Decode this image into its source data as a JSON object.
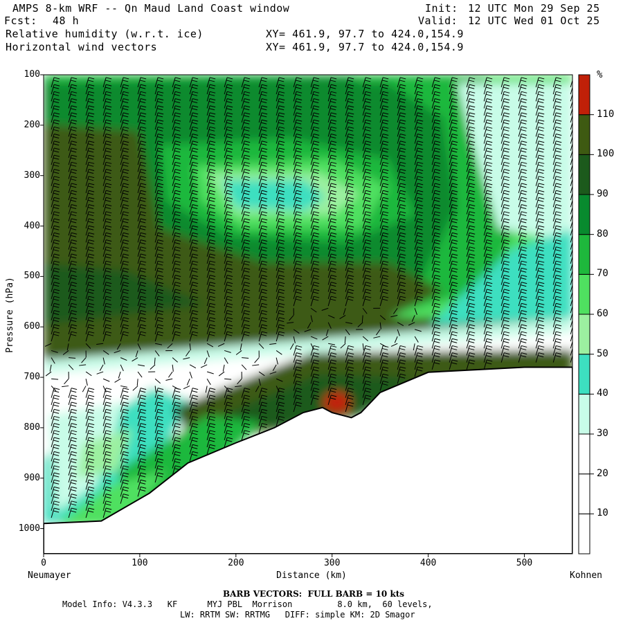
{
  "header": {
    "title": "AMPS 8-km WRF -- Qn Maud Land Coast window",
    "init_label": "Init:",
    "init_value": "12 UTC Mon 29 Sep 25",
    "fcst_label": "Fcst:",
    "fcst_value": "48 h",
    "valid_label": "Valid:",
    "valid_value": "12 UTC Wed 01 Oct 25",
    "field1": "Relative humidity (w.r.t. ice)",
    "field2": "Horizontal wind vectors",
    "xy1": "XY= 461.9, 97.7 to 424.0,154.9",
    "xy2": "XY= 461.9, 97.7 to 424.0,154.9"
  },
  "chart_data": {
    "type": "heatmap",
    "title": "Relative humidity (w.r.t. ice)",
    "xlabel": "Distance (km)",
    "ylabel": "Pressure (hPa)",
    "xlim": [
      0,
      550
    ],
    "ylim": [
      1050,
      100
    ],
    "x_ticks": [
      0,
      100,
      200,
      300,
      400,
      500
    ],
    "y_ticks": [
      100,
      200,
      300,
      400,
      500,
      600,
      700,
      800,
      900,
      1000
    ],
    "x_endpoints": {
      "left": "Neumayer",
      "right": "Kohnen"
    },
    "colorbar": {
      "unit": "%",
      "levels": [
        10,
        20,
        30,
        40,
        50,
        60,
        70,
        80,
        90,
        100,
        110
      ],
      "colors": [
        "#ffffff",
        "#ffffff",
        "#ffffff",
        "#c8fce8",
        "#3ddfc0",
        "#9cf0a0",
        "#4fe060",
        "#1eb83c",
        "#088a2e",
        "#1c5a1c",
        "#3e5a12",
        "#c02008"
      ]
    },
    "terrain_surface_pressure": {
      "x": [
        0,
        60,
        110,
        150,
        200,
        240,
        270,
        290,
        300,
        320,
        330,
        350,
        400,
        450,
        500,
        550
      ],
      "p": [
        990,
        985,
        930,
        870,
        830,
        800,
        770,
        760,
        770,
        780,
        770,
        730,
        690,
        685,
        680,
        680
      ]
    },
    "barb_note": "BARB VECTORS: FULL BARB = 10 kts"
  },
  "footer": {
    "barb_line": "BARB VECTORS:  FULL BARB = 10 kts",
    "model_line": "Model Info: V4.3.3   KF      MYJ PBL  Morrison         8.0 km,  60 levels,",
    "phys_line": "LW: RRTM SW: RRTMG   DIFF: simple KM: 2D Smagor"
  }
}
